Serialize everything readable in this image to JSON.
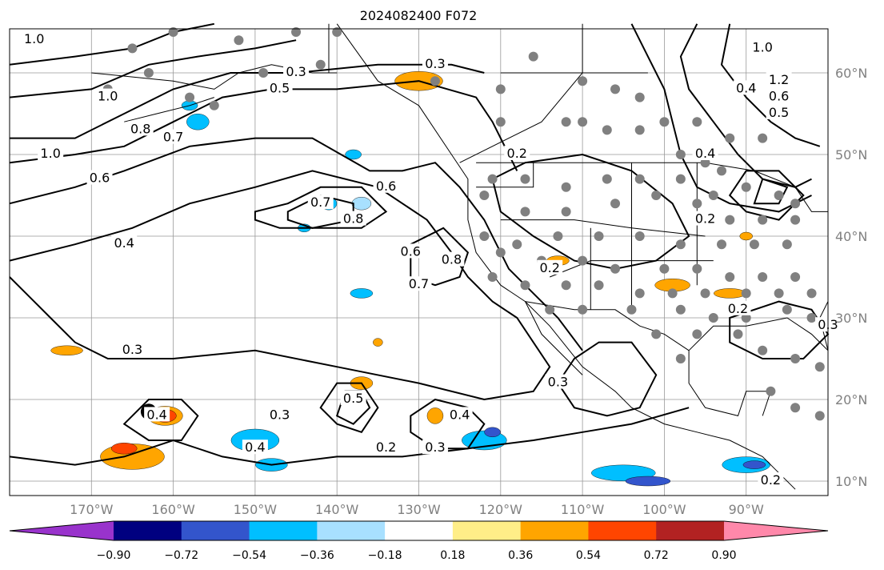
{
  "chart_data": {
    "type": "contour map",
    "title": "2024082400 F072",
    "x_ticks": [
      "170°W",
      "160°W",
      "150°W",
      "140°W",
      "130°W",
      "120°W",
      "110°W",
      "100°W",
      "90°W"
    ],
    "x_tick_values": [
      -170,
      -160,
      -150,
      -140,
      -130,
      -120,
      -110,
      -100,
      -90
    ],
    "y_ticks": [
      "60°N",
      "50°N",
      "40°N",
      "30°N",
      "20°N",
      "10°N"
    ],
    "y_tick_values": [
      60,
      50,
      40,
      30,
      20,
      10
    ],
    "lon_range": [
      -180,
      -80
    ],
    "lat_range": [
      8,
      66
    ],
    "grid": true,
    "colorbar": {
      "orientation": "horizontal",
      "placement": "bottom",
      "extend": "both",
      "levels": [
        -0.9,
        -0.72,
        -0.54,
        -0.36,
        -0.18,
        0.18,
        0.36,
        0.54,
        0.72,
        0.9
      ],
      "tick_labels": [
        "−0.90",
        "−0.72",
        "−0.54",
        "−0.36",
        "−0.18",
        "0.18",
        "0.36",
        "0.54",
        "0.72",
        "0.90"
      ],
      "colors": [
        "#9933cc",
        "#000080",
        "#3355cc",
        "#00bfff",
        "#a8e0ff",
        "#ffffff",
        "#ffee88",
        "#ffa500",
        "#ff4500",
        "#b22222",
        "#ff88aa"
      ]
    },
    "contour_labels": [
      {
        "text": "1.0",
        "lon": -177,
        "lat": 64
      },
      {
        "text": "1.0",
        "lon": -168,
        "lat": 57
      },
      {
        "text": "0.3",
        "lon": -145,
        "lat": 60
      },
      {
        "text": "0.5",
        "lon": -147,
        "lat": 58
      },
      {
        "text": "0.3",
        "lon": -128,
        "lat": 61
      },
      {
        "text": "0.8",
        "lon": -164,
        "lat": 53
      },
      {
        "text": "0.7",
        "lon": -160,
        "lat": 52
      },
      {
        "text": "1.0",
        "lon": -175,
        "lat": 50
      },
      {
        "text": "0.6",
        "lon": -169,
        "lat": 47
      },
      {
        "text": "0.4",
        "lon": -166,
        "lat": 39
      },
      {
        "text": "0.7",
        "lon": -142,
        "lat": 44
      },
      {
        "text": "0.8",
        "lon": -138,
        "lat": 42
      },
      {
        "text": "0.6",
        "lon": -134,
        "lat": 46
      },
      {
        "text": "0.6",
        "lon": -131,
        "lat": 38
      },
      {
        "text": "0.8",
        "lon": -126,
        "lat": 37
      },
      {
        "text": "0.7",
        "lon": -130,
        "lat": 34
      },
      {
        "text": "0.3",
        "lon": -165,
        "lat": 26
      },
      {
        "text": "0.4",
        "lon": -162,
        "lat": 18
      },
      {
        "text": "0.3",
        "lon": -147,
        "lat": 18
      },
      {
        "text": "0.4",
        "lon": -150,
        "lat": 14
      },
      {
        "text": "0.5",
        "lon": -138,
        "lat": 20
      },
      {
        "text": "0.2",
        "lon": -134,
        "lat": 14
      },
      {
        "text": "0.4",
        "lon": -125,
        "lat": 18
      },
      {
        "text": "0.3",
        "lon": -128,
        "lat": 14
      },
      {
        "text": "0.2",
        "lon": -118,
        "lat": 50
      },
      {
        "text": "0.2",
        "lon": -114,
        "lat": 36
      },
      {
        "text": "0.2",
        "lon": -95,
        "lat": 42
      },
      {
        "text": "0.4",
        "lon": -95,
        "lat": 50
      },
      {
        "text": "0.4",
        "lon": -90,
        "lat": 58
      },
      {
        "text": "1.0",
        "lon": -88,
        "lat": 63
      },
      {
        "text": "1.2",
        "lon": -86,
        "lat": 59
      },
      {
        "text": "0.6",
        "lon": -86,
        "lat": 57
      },
      {
        "text": "0.5",
        "lon": -86,
        "lat": 55
      },
      {
        "text": "0.3",
        "lon": -113,
        "lat": 22
      },
      {
        "text": "0.2",
        "lon": -91,
        "lat": 31
      },
      {
        "text": "0.3",
        "lon": -80,
        "lat": 29
      },
      {
        "text": "0.2",
        "lon": -87,
        "lat": 10
      }
    ]
  }
}
